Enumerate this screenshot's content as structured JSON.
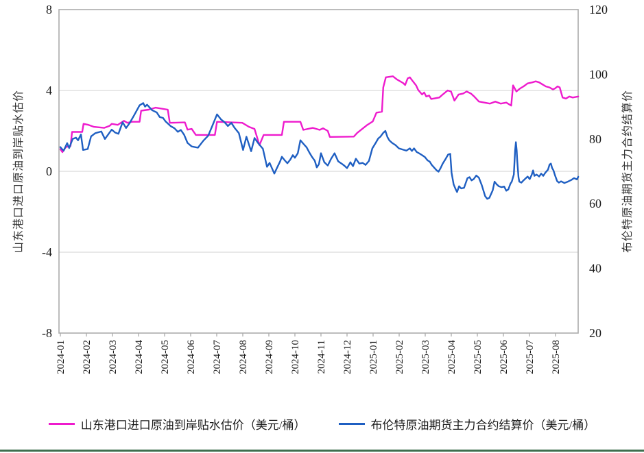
{
  "chart_data": {
    "type": "line",
    "title": "",
    "x_axis": {
      "tick_labels": [
        "2024-01",
        "2024-02",
        "2024-03",
        "2024-04",
        "2024-05",
        "2024-06",
        "2024-07",
        "2024-08",
        "2024-09",
        "2024-10",
        "2024-11",
        "2024-12",
        "2025-01",
        "2025-02",
        "2025-03",
        "2025-04",
        "2025-05",
        "2025-06",
        "2025-07",
        "2025-08"
      ],
      "x_unit": "months since 2024-01 (fractional)"
    },
    "left_axis": {
      "label": "山东港口进口原油到岸贴水估价",
      "ticks": [
        8,
        4,
        0,
        -4,
        -8
      ],
      "range": [
        -8,
        8
      ]
    },
    "right_axis": {
      "label": "布伦特原油期货主力合约结算价",
      "ticks": [
        120,
        100,
        80,
        60,
        40,
        20
      ],
      "range": [
        20,
        120
      ]
    },
    "grid": {
      "horizontal_left_values": [
        4,
        0,
        -4
      ],
      "color": "#d9d9d9",
      "frame_color": "#ababab"
    },
    "legend_position": "bottom-center",
    "series": [
      {
        "name": "山东港口进口原油到岸贴水估价（美元/桶）",
        "axis": "left",
        "color": "#ee1bcd",
        "points": [
          [
            0.0,
            1.1
          ],
          [
            0.08,
            0.95
          ],
          [
            0.21,
            1.2
          ],
          [
            0.39,
            1.25
          ],
          [
            0.45,
            1.95
          ],
          [
            0.84,
            1.95
          ],
          [
            0.89,
            2.35
          ],
          [
            1.08,
            2.3
          ],
          [
            1.29,
            2.2
          ],
          [
            1.68,
            2.15
          ],
          [
            1.89,
            2.25
          ],
          [
            1.97,
            2.35
          ],
          [
            2.2,
            2.3
          ],
          [
            2.44,
            2.5
          ],
          [
            2.57,
            2.4
          ],
          [
            2.76,
            2.45
          ],
          [
            3.04,
            2.45
          ],
          [
            3.1,
            3.0
          ],
          [
            3.39,
            3.05
          ],
          [
            3.65,
            3.15
          ],
          [
            4.12,
            3.05
          ],
          [
            4.2,
            2.4
          ],
          [
            4.78,
            2.42
          ],
          [
            4.88,
            2.06
          ],
          [
            5.04,
            2.1
          ],
          [
            5.2,
            1.8
          ],
          [
            5.93,
            1.8
          ],
          [
            6.01,
            2.45
          ],
          [
            6.98,
            2.4
          ],
          [
            7.24,
            2.2
          ],
          [
            7.45,
            2.1
          ],
          [
            7.64,
            1.3
          ],
          [
            7.8,
            1.8
          ],
          [
            8.5,
            1.8
          ],
          [
            8.58,
            2.45
          ],
          [
            9.21,
            2.45
          ],
          [
            9.32,
            2.05
          ],
          [
            9.69,
            2.15
          ],
          [
            9.95,
            2.05
          ],
          [
            10.08,
            2.13
          ],
          [
            10.26,
            2.0
          ],
          [
            10.34,
            1.7
          ],
          [
            11.26,
            1.72
          ],
          [
            11.39,
            1.9
          ],
          [
            11.78,
            2.3
          ],
          [
            11.99,
            2.47
          ],
          [
            12.13,
            2.9
          ],
          [
            12.34,
            2.95
          ],
          [
            12.39,
            4.15
          ],
          [
            12.49,
            4.65
          ],
          [
            12.76,
            4.7
          ],
          [
            12.91,
            4.55
          ],
          [
            13.15,
            4.37
          ],
          [
            13.23,
            4.27
          ],
          [
            13.33,
            4.6
          ],
          [
            13.41,
            4.65
          ],
          [
            13.54,
            4.43
          ],
          [
            13.65,
            4.25
          ],
          [
            13.73,
            4.03
          ],
          [
            13.88,
            3.8
          ],
          [
            13.96,
            3.9
          ],
          [
            14.04,
            3.7
          ],
          [
            14.15,
            3.75
          ],
          [
            14.23,
            3.58
          ],
          [
            14.54,
            3.65
          ],
          [
            14.67,
            3.8
          ],
          [
            14.86,
            4.0
          ],
          [
            14.99,
            3.95
          ],
          [
            15.12,
            3.5
          ],
          [
            15.28,
            3.8
          ],
          [
            15.46,
            3.85
          ],
          [
            15.59,
            3.95
          ],
          [
            15.75,
            3.85
          ],
          [
            15.88,
            3.7
          ],
          [
            16.06,
            3.45
          ],
          [
            16.27,
            3.4
          ],
          [
            16.48,
            3.35
          ],
          [
            16.69,
            3.45
          ],
          [
            16.9,
            3.35
          ],
          [
            17.11,
            3.4
          ],
          [
            17.3,
            3.25
          ],
          [
            17.37,
            4.25
          ],
          [
            17.5,
            3.95
          ],
          [
            17.64,
            4.1
          ],
          [
            17.77,
            4.2
          ],
          [
            17.93,
            4.35
          ],
          [
            18.11,
            4.4
          ],
          [
            18.24,
            4.45
          ],
          [
            18.37,
            4.4
          ],
          [
            18.5,
            4.3
          ],
          [
            18.63,
            4.2
          ],
          [
            18.77,
            4.15
          ],
          [
            18.9,
            4.05
          ],
          [
            18.98,
            4.1
          ],
          [
            19.08,
            4.2
          ],
          [
            19.16,
            4.15
          ],
          [
            19.27,
            3.65
          ],
          [
            19.4,
            3.6
          ],
          [
            19.53,
            3.7
          ],
          [
            19.66,
            3.65
          ],
          [
            19.87,
            3.7
          ]
        ]
      },
      {
        "name": "布伦特原油期货主力合约结算价（美元/桶）",
        "axis": "right",
        "color": "#1f5fc2",
        "points": [
          [
            0.0,
            77.5
          ],
          [
            0.05,
            77.0
          ],
          [
            0.13,
            76.4
          ],
          [
            0.26,
            78.7
          ],
          [
            0.34,
            77.2
          ],
          [
            0.47,
            80.0
          ],
          [
            0.6,
            80.4
          ],
          [
            0.68,
            79.6
          ],
          [
            0.79,
            81.4
          ],
          [
            0.87,
            76.6
          ],
          [
            1.05,
            76.9
          ],
          [
            1.18,
            80.8
          ],
          [
            1.34,
            81.8
          ],
          [
            1.57,
            82.3
          ],
          [
            1.71,
            80.0
          ],
          [
            1.97,
            82.9
          ],
          [
            2.1,
            82.0
          ],
          [
            2.23,
            81.6
          ],
          [
            2.39,
            85.2
          ],
          [
            2.52,
            83.4
          ],
          [
            2.65,
            84.8
          ],
          [
            2.83,
            87.3
          ],
          [
            3.04,
            90.4
          ],
          [
            3.18,
            91.1
          ],
          [
            3.25,
            90.0
          ],
          [
            3.33,
            90.6
          ],
          [
            3.52,
            88.9
          ],
          [
            3.7,
            88.2
          ],
          [
            3.81,
            86.8
          ],
          [
            3.94,
            86.5
          ],
          [
            4.04,
            85.4
          ],
          [
            4.23,
            84.0
          ],
          [
            4.38,
            83.3
          ],
          [
            4.51,
            82.2
          ],
          [
            4.62,
            82.8
          ],
          [
            4.75,
            81.3
          ],
          [
            4.88,
            78.8
          ],
          [
            5.04,
            77.7
          ],
          [
            5.28,
            77.3
          ],
          [
            5.49,
            79.5
          ],
          [
            5.67,
            81.0
          ],
          [
            5.83,
            84.0
          ],
          [
            6.01,
            87.6
          ],
          [
            6.17,
            86.0
          ],
          [
            6.3,
            85.2
          ],
          [
            6.43,
            84.0
          ],
          [
            6.56,
            85.0
          ],
          [
            6.69,
            83.4
          ],
          [
            6.85,
            81.8
          ],
          [
            7.01,
            76.6
          ],
          [
            7.14,
            80.7
          ],
          [
            7.32,
            76.2
          ],
          [
            7.45,
            80.3
          ],
          [
            7.61,
            78.5
          ],
          [
            7.77,
            77.0
          ],
          [
            7.93,
            71.4
          ],
          [
            8.03,
            72.6
          ],
          [
            8.21,
            69.3
          ],
          [
            8.32,
            71.2
          ],
          [
            8.43,
            73.0
          ],
          [
            8.5,
            74.5
          ],
          [
            8.61,
            73.4
          ],
          [
            8.71,
            72.5
          ],
          [
            8.82,
            73.6
          ],
          [
            8.92,
            75.0
          ],
          [
            9.0,
            74.2
          ],
          [
            9.11,
            75.6
          ],
          [
            9.21,
            79.6
          ],
          [
            9.34,
            78.4
          ],
          [
            9.45,
            77.4
          ],
          [
            9.55,
            75.9
          ],
          [
            9.66,
            74.4
          ],
          [
            9.76,
            73.3
          ],
          [
            9.84,
            71.2
          ],
          [
            9.92,
            72.2
          ],
          [
            10.0,
            75.6
          ],
          [
            10.13,
            72.8
          ],
          [
            10.26,
            71.8
          ],
          [
            10.39,
            73.9
          ],
          [
            10.52,
            75.6
          ],
          [
            10.66,
            73.1
          ],
          [
            10.79,
            72.4
          ],
          [
            10.89,
            71.8
          ],
          [
            11.0,
            71.0
          ],
          [
            11.13,
            72.8
          ],
          [
            11.23,
            71.6
          ],
          [
            11.34,
            73.9
          ],
          [
            11.47,
            72.4
          ],
          [
            11.6,
            72.6
          ],
          [
            11.71,
            72.0
          ],
          [
            11.84,
            73.2
          ],
          [
            11.97,
            77.1
          ],
          [
            12.1,
            78.8
          ],
          [
            12.2,
            80.2
          ],
          [
            12.28,
            80.7
          ],
          [
            12.39,
            81.9
          ],
          [
            12.47,
            82.5
          ],
          [
            12.55,
            80.6
          ],
          [
            12.62,
            79.6
          ],
          [
            12.73,
            78.8
          ],
          [
            12.86,
            78.1
          ],
          [
            12.99,
            77.1
          ],
          [
            13.15,
            76.7
          ],
          [
            13.28,
            76.4
          ],
          [
            13.41,
            77.1
          ],
          [
            13.49,
            76.3
          ],
          [
            13.57,
            77.1
          ],
          [
            13.67,
            76.0
          ],
          [
            13.78,
            75.5
          ],
          [
            13.88,
            75.0
          ],
          [
            13.99,
            74.4
          ],
          [
            14.09,
            73.4
          ],
          [
            14.17,
            73.0
          ],
          [
            14.25,
            72.0
          ],
          [
            14.36,
            71.0
          ],
          [
            14.44,
            70.3
          ],
          [
            14.51,
            69.9
          ],
          [
            14.59,
            71.0
          ],
          [
            14.67,
            72.4
          ],
          [
            14.78,
            73.8
          ],
          [
            14.88,
            75.2
          ],
          [
            14.96,
            75.4
          ],
          [
            15.01,
            69.6
          ],
          [
            15.09,
            66.0
          ],
          [
            15.17,
            64.4
          ],
          [
            15.22,
            63.6
          ],
          [
            15.3,
            65.4
          ],
          [
            15.38,
            64.7
          ],
          [
            15.49,
            64.9
          ],
          [
            15.62,
            67.9
          ],
          [
            15.7,
            68.2
          ],
          [
            15.78,
            67.2
          ],
          [
            15.86,
            67.6
          ],
          [
            15.96,
            68.7
          ],
          [
            16.06,
            68.0
          ],
          [
            16.17,
            65.7
          ],
          [
            16.3,
            62.3
          ],
          [
            16.38,
            61.5
          ],
          [
            16.46,
            61.8
          ],
          [
            16.59,
            64.1
          ],
          [
            16.66,
            66.8
          ],
          [
            16.74,
            66.0
          ],
          [
            16.82,
            65.4
          ],
          [
            16.93,
            65.1
          ],
          [
            17.03,
            65.3
          ],
          [
            17.11,
            64.0
          ],
          [
            17.19,
            64.4
          ],
          [
            17.27,
            66.2
          ],
          [
            17.32,
            66.8
          ],
          [
            17.4,
            69.0
          ],
          [
            17.45,
            76.5
          ],
          [
            17.48,
            79.0
          ],
          [
            17.51,
            76.4
          ],
          [
            17.53,
            73.5
          ],
          [
            17.58,
            68.2
          ],
          [
            17.61,
            66.8
          ],
          [
            17.69,
            66.5
          ],
          [
            17.77,
            67.2
          ],
          [
            17.85,
            67.8
          ],
          [
            17.93,
            68.4
          ],
          [
            18.01,
            67.6
          ],
          [
            18.09,
            69.0
          ],
          [
            18.14,
            70.3
          ],
          [
            18.19,
            68.6
          ],
          [
            18.27,
            69.0
          ],
          [
            18.37,
            68.4
          ],
          [
            18.45,
            69.3
          ],
          [
            18.53,
            68.6
          ],
          [
            18.61,
            69.6
          ],
          [
            18.71,
            70.5
          ],
          [
            18.77,
            72.1
          ],
          [
            18.82,
            72.4
          ],
          [
            18.87,
            71.0
          ],
          [
            18.92,
            70.3
          ],
          [
            18.98,
            68.8
          ],
          [
            19.06,
            67.0
          ],
          [
            19.13,
            66.5
          ],
          [
            19.21,
            66.9
          ],
          [
            19.34,
            66.4
          ],
          [
            19.47,
            66.8
          ],
          [
            19.6,
            67.3
          ],
          [
            19.71,
            67.9
          ],
          [
            19.82,
            67.5
          ],
          [
            19.87,
            68.3
          ]
        ]
      }
    ]
  },
  "footer": {
    "bar_color": "#3e6e4e"
  }
}
